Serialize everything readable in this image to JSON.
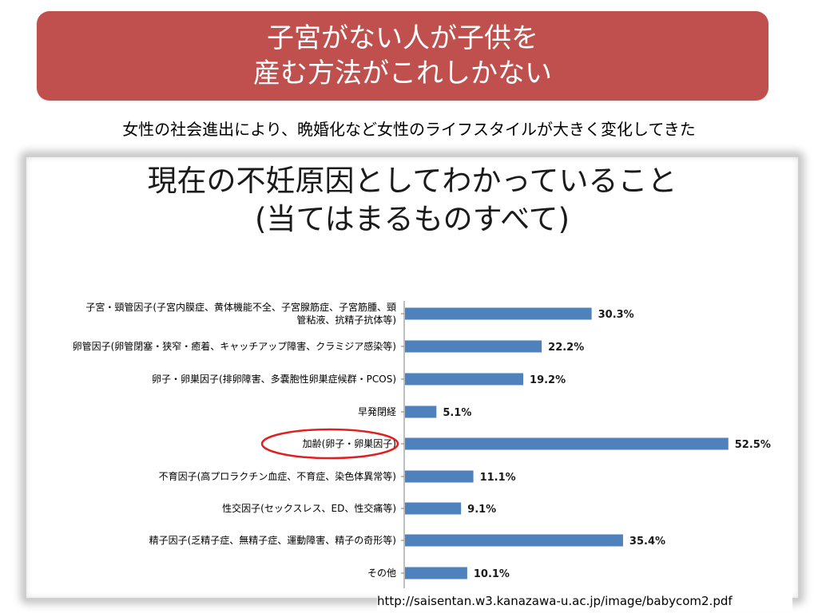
{
  "slide": {
    "title_lines": [
      "子宮がない人が子供を",
      "産む方法がこれしかない"
    ],
    "subtitle": "女性の社会進出により、晩婚化など女性のライフスタイルが大きく変化してきた",
    "source": "http://saisentan.w3.kanazawa-u.ac.jp/image/babycom2.pdf"
  },
  "colors": {
    "banner": "#c0504d",
    "bar": "#4f81bd",
    "highlight": "#e02020"
  },
  "chart_data": {
    "type": "bar",
    "orientation": "horizontal",
    "title_lines": [
      "現在の不妊原因としてわかっていること",
      "(当てはまるものすべて)"
    ],
    "categories": [
      [
        "子宮・頸管因子(子宮内膜症、黄体機能不全、子宮腺筋症、子宮筋腫、頸",
        "管粘液、抗精子抗体等)"
      ],
      [
        "卵管因子(卵管閉塞・狭窄・癒着、キャッチアップ障害、クラミジア感染等)"
      ],
      [
        "卵子・卵巣因子(排卵障害、多嚢胞性卵巣症候群・PCOS)"
      ],
      [
        "早発閉経"
      ],
      [
        "加齢(卵子・卵巣因子)"
      ],
      [
        "不育因子(高プロラクチン血症、不育症、染色体異常等)"
      ],
      [
        "性交因子(セックスレス、ED、性交痛等)"
      ],
      [
        "精子因子(乏精子症、無精子症、運動障害、精子の奇形等)"
      ],
      [
        "その他"
      ]
    ],
    "values": [
      30.3,
      22.2,
      19.2,
      5.1,
      52.5,
      11.1,
      9.1,
      35.4,
      10.1
    ],
    "value_labels": [
      "30.3%",
      "22.2%",
      "19.2%",
      "5.1%",
      "52.5%",
      "11.1%",
      "9.1%",
      "35.4%",
      "10.1%"
    ],
    "highlighted_category_index": 4,
    "xlim": [
      0,
      60
    ],
    "grid": false,
    "legend": "none"
  }
}
